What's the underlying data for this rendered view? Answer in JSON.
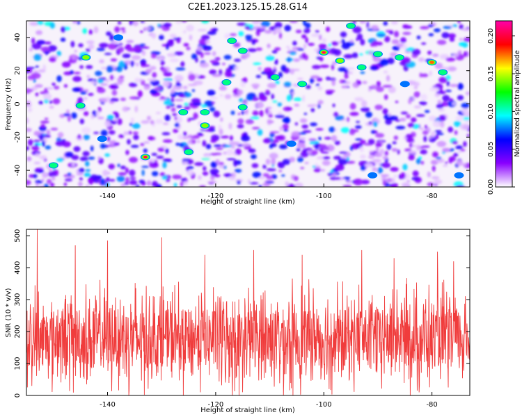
{
  "figure": {
    "title": "C2E1.2023.125.15.28.G14"
  },
  "chart_data": [
    {
      "type": "heatmap",
      "xlabel": "Height of straight line (km)",
      "ylabel": "Frequency (Hz)",
      "xlim": [
        -155,
        -73
      ],
      "ylim": [
        -50,
        50
      ],
      "xticks": [
        -140,
        -120,
        -100,
        -80
      ],
      "yticks": [
        -40,
        -20,
        0,
        20,
        40
      ],
      "colorbar": {
        "label": "Normalized spectral amplitude",
        "range": [
          0,
          0.22
        ],
        "ticks": [
          "0.00",
          "0.05",
          "0.10",
          "0.15",
          "0.20"
        ],
        "colors": [
          "#ffffff",
          "#8a00ff",
          "#0000ff",
          "#00ffff",
          "#00ff00",
          "#ffff00",
          "#ff0000",
          "#ff00aa"
        ]
      },
      "hotspots": [
        {
          "x": -133,
          "y": -32,
          "value": 0.22
        },
        {
          "x": -100,
          "y": 31,
          "value": 0.21
        },
        {
          "x": -144,
          "y": 28,
          "value": 0.16
        },
        {
          "x": -80,
          "y": 25,
          "value": 0.18
        },
        {
          "x": -97,
          "y": 26,
          "value": 0.15
        },
        {
          "x": -115,
          "y": 32,
          "value": 0.14
        },
        {
          "x": -109,
          "y": 16,
          "value": 0.13
        },
        {
          "x": -118,
          "y": 13,
          "value": 0.13
        },
        {
          "x": -122,
          "y": -5,
          "value": 0.14
        },
        {
          "x": -122,
          "y": -13,
          "value": 0.15
        },
        {
          "x": -126,
          "y": -5,
          "value": 0.12
        },
        {
          "x": -125,
          "y": -29,
          "value": 0.12
        },
        {
          "x": -115,
          "y": -2,
          "value": 0.12
        },
        {
          "x": -145,
          "y": -1,
          "value": 0.12
        },
        {
          "x": -90,
          "y": 30,
          "value": 0.14
        },
        {
          "x": -86,
          "y": 28,
          "value": 0.13
        },
        {
          "x": -78,
          "y": 19,
          "value": 0.12
        },
        {
          "x": -93,
          "y": 22,
          "value": 0.12
        },
        {
          "x": -104,
          "y": 12,
          "value": 0.11
        },
        {
          "x": -150,
          "y": -37,
          "value": 0.11
        },
        {
          "x": -138,
          "y": 40,
          "value": 0.1
        },
        {
          "x": -117,
          "y": 38,
          "value": 0.12
        },
        {
          "x": -95,
          "y": 47,
          "value": 0.12
        },
        {
          "x": -141,
          "y": -21,
          "value": 0.1
        },
        {
          "x": -91,
          "y": -43,
          "value": 0.1
        },
        {
          "x": -85,
          "y": 12,
          "value": 0.1
        },
        {
          "x": -106,
          "y": -24,
          "value": 0.1
        },
        {
          "x": -75,
          "y": -43,
          "value": 0.1
        }
      ]
    },
    {
      "type": "line",
      "xlabel": "Height of straight line (km)",
      "ylabel": "SNR (10 * v/v)",
      "xlim": [
        -155,
        -73
      ],
      "ylim": [
        0,
        520
      ],
      "xticks": [
        -140,
        -120,
        -100,
        -80
      ],
      "yticks": [
        0,
        100,
        200,
        300,
        400,
        500
      ],
      "grid": false,
      "color": "#f03c3c",
      "series": [
        {
          "profile": "noise band, baseline ~180, typical spread 100-300",
          "x_range": [
            -155,
            -73
          ],
          "baseline": 180,
          "typical_low": 100,
          "typical_high": 300,
          "peaks": [
            {
              "x": -153,
              "y": 520
            },
            {
              "x": -146,
              "y": 470
            },
            {
              "x": -140,
              "y": 485
            },
            {
              "x": -130,
              "y": 495
            },
            {
              "x": -122,
              "y": 440
            },
            {
              "x": -113,
              "y": 455
            },
            {
              "x": -104,
              "y": 440
            },
            {
              "x": -93,
              "y": 455
            },
            {
              "x": -87,
              "y": 430
            },
            {
              "x": -79,
              "y": 450
            },
            {
              "x": -76,
              "y": 420
            }
          ],
          "dips": [
            {
              "x": -154,
              "y": 30
            },
            {
              "x": -136,
              "y": 15
            },
            {
              "x": -126,
              "y": 0
            },
            {
              "x": -115,
              "y": 10
            },
            {
              "x": -99,
              "y": 20
            },
            {
              "x": -84,
              "y": 0
            },
            {
              "x": -77,
              "y": 25
            }
          ]
        }
      ]
    }
  ]
}
